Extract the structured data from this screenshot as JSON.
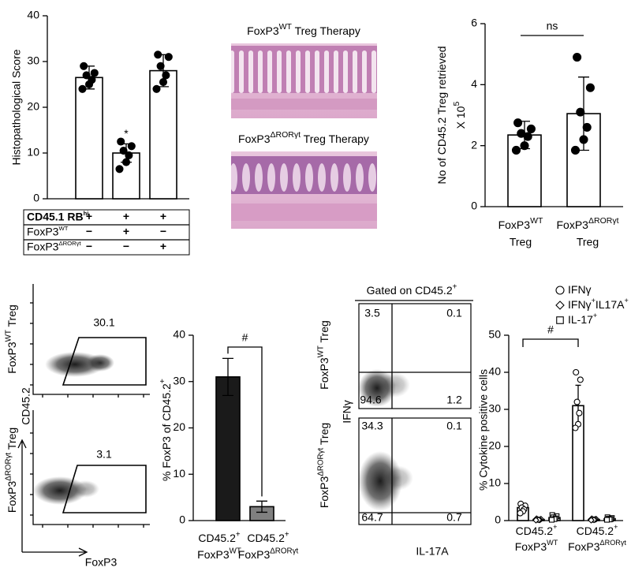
{
  "chart_data": [
    {
      "type": "bar",
      "ylabel": [
        "Histopathological Score"
      ],
      "categories": [
        null,
        null,
        null
      ],
      "values": [
        26.5,
        10,
        28
      ],
      "errors": [
        2.5,
        2,
        3.5
      ],
      "points": [
        [
          29,
          27.5,
          27,
          26,
          25,
          24
        ],
        [
          12.5,
          11.5,
          10.5,
          9.5,
          8,
          6.5
        ],
        [
          31.5,
          31,
          29,
          27,
          25.5,
          24
        ]
      ],
      "color": "#ffffff",
      "edgecolor": "#000000",
      "marker": "circle",
      "marker_filled": true,
      "ylim": [
        0,
        40
      ],
      "yticks": [
        0,
        10,
        20,
        30,
        40
      ],
      "significance": [
        null,
        "*",
        null
      ],
      "table": {
        "rows": [
          {
            "label": [
              {
                "text": "CD45.1 RB"
              },
              {
                "sup": "hi"
              }
            ],
            "cells": [
              "+",
              "+",
              "+"
            ]
          },
          {
            "label": [
              {
                "text": "FoxP3"
              },
              {
                "sup": "WT"
              }
            ],
            "cells": [
              "−",
              "+",
              "−"
            ]
          },
          {
            "label": [
              {
                "text": "FoxP3"
              },
              {
                "sup": "ΔRORγt"
              }
            ],
            "cells": [
              "−",
              "−",
              "+"
            ]
          }
        ]
      }
    },
    {
      "type": "bar",
      "ylabel": [
        [
          {
            "text": "No of CD45.2 Treg retrieved"
          }
        ],
        [
          {
            "text": "X 10"
          },
          {
            "sup": "5"
          }
        ]
      ],
      "categories": [
        [
          [
            {
              "text": "FoxP3"
            },
            {
              "sup": "WT"
            }
          ],
          "Treg"
        ],
        [
          [
            {
              "text": "FoxP3"
            },
            {
              "sup": "ΔRORγt"
            }
          ],
          "Treg"
        ]
      ],
      "values": [
        2.35,
        3.05
      ],
      "errors": [
        0.45,
        1.2
      ],
      "points": [
        [
          2.75,
          2.55,
          2.4,
          2.3,
          2.0,
          1.85
        ],
        [
          4.9,
          3.9,
          3.1,
          2.6,
          2.2,
          1.85
        ]
      ],
      "color": "#ffffff",
      "edgecolor": "#000000",
      "marker": "circle",
      "marker_filled": true,
      "ylim": [
        0,
        6
      ],
      "yticks": [
        0,
        2,
        4,
        6
      ],
      "comparison": {
        "text": "ns"
      }
    },
    {
      "type": "flow_gate",
      "xlabel": "FoxP3",
      "ylabel": "CD45.2",
      "plots": [
        {
          "label": [
            {
              "text": "FoxP3"
            },
            {
              "sup": "WT"
            },
            {
              "text": " Treg"
            }
          ],
          "gate": 30.1
        },
        {
          "label": [
            {
              "text": "FoxP3"
            },
            {
              "sup": "ΔRORγt"
            },
            {
              "text": " Treg"
            }
          ],
          "gate": 3.1
        }
      ]
    },
    {
      "type": "bar",
      "ylabel": [
        [
          {
            "text": "% FoxP3 of CD45.2"
          },
          {
            "sup": "+"
          }
        ]
      ],
      "categories": [
        [
          [
            {
              "text": "CD45.2"
            },
            {
              "sup": "+"
            }
          ],
          [
            {
              "text": "FoxP3"
            },
            {
              "sup": "WT"
            }
          ]
        ],
        [
          [
            {
              "text": "CD45.2"
            },
            {
              "sup": "+"
            }
          ],
          [
            {
              "text": "FoxP3"
            },
            {
              "sup": "ΔRORγt"
            }
          ]
        ]
      ],
      "values": [
        31,
        3
      ],
      "errors": [
        4,
        1.2
      ],
      "color": [
        "#1a1a1a",
        "#808080"
      ],
      "edgecolor": "#000000",
      "ylim": [
        0,
        40
      ],
      "yticks": [
        0,
        10,
        20,
        30,
        40
      ],
      "comparison": {
        "text": "#"
      }
    },
    {
      "type": "flow_quadrant",
      "title": [
        {
          "text": "Gated on CD45.2"
        },
        {
          "sup": "+"
        }
      ],
      "xlabel": "IL-17A",
      "ylabel": "IFNγ",
      "plots": [
        {
          "label": [
            {
              "text": "FoxP3"
            },
            {
              "sup": "WT"
            },
            {
              "text": " Treg"
            }
          ],
          "quadrants": [
            3.5,
            0.1,
            94.6,
            1.2
          ]
        },
        {
          "label": [
            {
              "text": "FoxP3"
            },
            {
              "sup": "ΔRORγt"
            },
            {
              "text": " Treg"
            }
          ],
          "quadrants": [
            34.3,
            0.1,
            64.7,
            0.7
          ]
        }
      ]
    },
    {
      "type": "grouped_bar",
      "ylabel": [
        "% Cytokine positive cells"
      ],
      "categories": [
        [
          [
            {
              "text": "CD45.2"
            },
            {
              "sup": "+"
            }
          ],
          [
            {
              "text": "FoxP3"
            },
            {
              "sup": "WT"
            }
          ]
        ],
        [
          [
            {
              "text": "CD45.2"
            },
            {
              "sup": "+"
            }
          ],
          [
            {
              "text": "FoxP3"
            },
            {
              "sup": "ΔRORγt"
            }
          ]
        ]
      ],
      "edgecolor": "#000000",
      "marker_filled": false,
      "series": [
        {
          "name": [
            {
              "text": "IFNγ"
            }
          ],
          "marker": "circle",
          "color": "#ffffff",
          "values": [
            3.5,
            31
          ],
          "errors": [
            1,
            5.5
          ],
          "points": [
            [
              4.5,
              4,
              3.5,
              3,
              2.5,
              2
            ],
            [
              40,
              38,
              32,
              29,
              26,
              25
            ]
          ]
        },
        {
          "name": [
            {
              "text": "IFNγ"
            },
            {
              "sup": "+"
            },
            {
              "text": "IL17A"
            },
            {
              "sup": "+"
            }
          ],
          "marker": "diamond",
          "color": "#ffffff",
          "values": [
            0.3,
            0.3
          ],
          "errors": [
            0.2,
            0.2
          ],
          "points": [
            [
              0.5,
              0.4,
              0.3,
              0.2,
              0.2,
              0.1
            ],
            [
              0.5,
              0.4,
              0.3,
              0.3,
              0.2,
              0.1
            ]
          ]
        },
        {
          "name": [
            {
              "text": "IL-17"
            },
            {
              "sup": "+"
            }
          ],
          "marker": "square",
          "color": "#ffffff",
          "values": [
            0.8,
            0.5
          ],
          "errors": [
            0.5,
            0.3
          ],
          "points": [
            [
              1.5,
              1.2,
              0.9,
              0.6,
              0.4,
              0.2
            ],
            [
              0.9,
              0.7,
              0.5,
              0.4,
              0.3,
              0.2
            ]
          ]
        }
      ],
      "ylim": [
        0,
        50
      ],
      "yticks": [
        0,
        10,
        20,
        30,
        40,
        50
      ],
      "comparison": {
        "text": "#"
      }
    }
  ],
  "histology": {
    "panels": [
      {
        "title": [
          {
            "text": "FoxP3"
          },
          {
            "sup": "WT"
          },
          {
            "text": " Treg Therapy"
          }
        ]
      },
      {
        "title": [
          {
            "text": "FoxP3"
          },
          {
            "sup": "ΔRORγt"
          },
          {
            "text": " Treg Therapy"
          }
        ]
      }
    ]
  }
}
